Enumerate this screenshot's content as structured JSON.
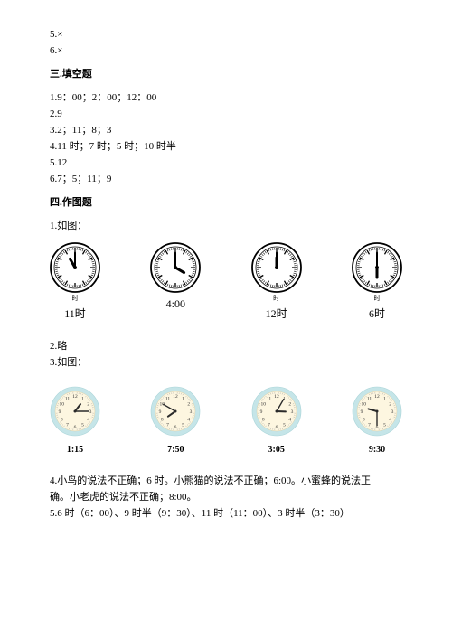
{
  "top": {
    "l1": "5.×",
    "l2": "6.×"
  },
  "sec3": {
    "title": "三.填空题",
    "l1": "1.9：00；2：00；12：00",
    "l2": "2.9",
    "l3": "3.2；11；8；3",
    "l4": "4.11 时；7 时；5 时；10 时半",
    "l5": "5.12",
    "l6": "6.7；5；11；9"
  },
  "sec4": {
    "title": "四.作图题",
    "p1": "1.如图：",
    "p2": "2.略",
    "p3": "3.如图：",
    "p4a": "4.小鸟的说法不正确；6 时。小熊猫的说法不正确；6:00。小蜜蜂的说法正",
    "p4b": "确。小老虎的说法不正确；8:00。",
    "p5": "5.6 时（6：00）、9 时半（9：30）、11 时（11：00）、3 时半（3：30）"
  },
  "clocks1": [
    {
      "label": "11时",
      "sub": "时",
      "hour": 11,
      "minute": 0,
      "style": "bw"
    },
    {
      "label": "4:00",
      "sub": "",
      "hour": 4,
      "minute": 0,
      "style": "bw"
    },
    {
      "label": "12时",
      "sub": "时",
      "hour": 12,
      "minute": 0,
      "style": "bw"
    },
    {
      "label": "6时",
      "sub": "时",
      "hour": 6,
      "minute": 0,
      "style": "bw"
    }
  ],
  "clocks2": [
    {
      "label": "1:15",
      "hour": 1,
      "minute": 15,
      "style": "blue"
    },
    {
      "label": "7:50",
      "hour": 7,
      "minute": 50,
      "style": "blue"
    },
    {
      "label": "3:05",
      "hour": 3,
      "minute": 5,
      "style": "blue"
    },
    {
      "label": "9:30",
      "hour": 9,
      "minute": 30,
      "style": "blue"
    }
  ],
  "colors": {
    "bw_rim": "#000000",
    "bw_face": "#ffffff",
    "bw_hand": "#000000",
    "blue_rim": "#c5e5e8",
    "blue_face": "#fdf6e0",
    "blue_hand": "#2a2a2a",
    "blue_num": "#333333"
  },
  "sizes": {
    "clock1_d": 56,
    "clock2_d": 56
  }
}
